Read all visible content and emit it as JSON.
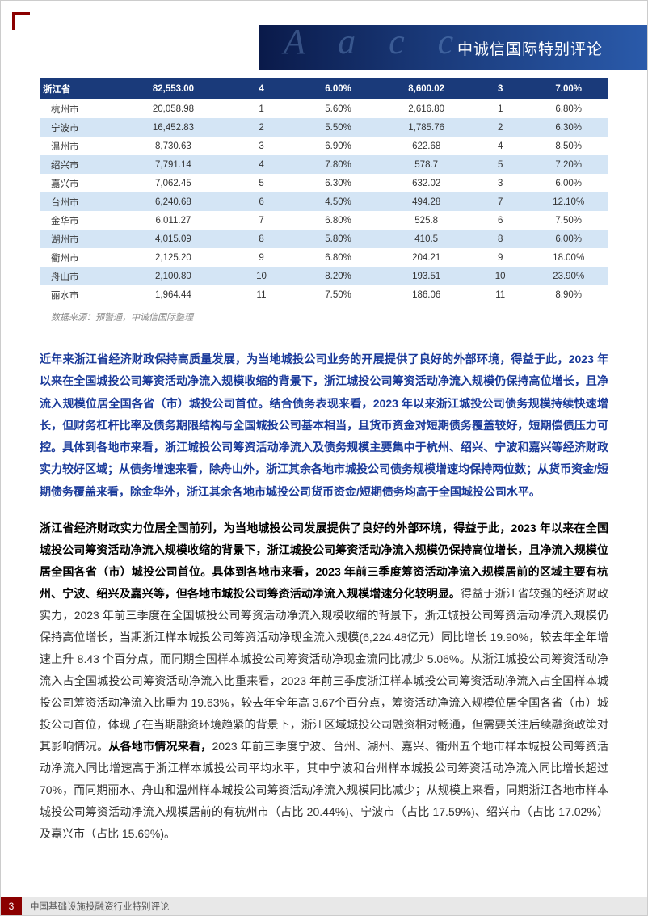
{
  "header": {
    "title": "中诚信国际特别评论"
  },
  "table": {
    "type": "table",
    "background_colors": {
      "header": "#1a3a7a",
      "even": "#d4e5f5",
      "odd": "#ffffff"
    },
    "text_colors": {
      "header": "#ffffff",
      "body": "#333333"
    },
    "rows": [
      {
        "cls": "header-row",
        "cells": [
          "浙江省",
          "82,553.00",
          "4",
          "6.00%",
          "8,600.02",
          "3",
          "7.00%"
        ]
      },
      {
        "cls": "odd",
        "cells": [
          "杭州市",
          "20,058.98",
          "1",
          "5.60%",
          "2,616.80",
          "1",
          "6.80%"
        ]
      },
      {
        "cls": "even",
        "cells": [
          "宁波市",
          "16,452.83",
          "2",
          "5.50%",
          "1,785.76",
          "2",
          "6.30%"
        ]
      },
      {
        "cls": "odd",
        "cells": [
          "温州市",
          "8,730.63",
          "3",
          "6.90%",
          "622.68",
          "4",
          "8.50%"
        ]
      },
      {
        "cls": "even",
        "cells": [
          "绍兴市",
          "7,791.14",
          "4",
          "7.80%",
          "578.7",
          "5",
          "7.20%"
        ]
      },
      {
        "cls": "odd",
        "cells": [
          "嘉兴市",
          "7,062.45",
          "5",
          "6.30%",
          "632.02",
          "3",
          "6.00%"
        ]
      },
      {
        "cls": "even",
        "cells": [
          "台州市",
          "6,240.68",
          "6",
          "4.50%",
          "494.28",
          "7",
          "12.10%"
        ]
      },
      {
        "cls": "odd",
        "cells": [
          "金华市",
          "6,011.27",
          "7",
          "6.80%",
          "525.8",
          "6",
          "7.50%"
        ]
      },
      {
        "cls": "even",
        "cells": [
          "湖州市",
          "4,015.09",
          "8",
          "5.80%",
          "410.5",
          "8",
          "6.00%"
        ]
      },
      {
        "cls": "odd",
        "cells": [
          "衢州市",
          "2,125.20",
          "9",
          "6.80%",
          "204.21",
          "9",
          "18.00%"
        ]
      },
      {
        "cls": "even",
        "cells": [
          "舟山市",
          "2,100.80",
          "10",
          "8.20%",
          "193.51",
          "10",
          "23.90%"
        ]
      },
      {
        "cls": "odd",
        "cells": [
          "丽水市",
          "1,964.44",
          "11",
          "7.50%",
          "186.06",
          "11",
          "8.90%"
        ]
      }
    ],
    "source": "数据来源：预警通，中诚信国际整理"
  },
  "summary": "近年来浙江省经济财政保持高质量发展，为当地城投公司业务的开展提供了良好的外部环境，得益于此，2023 年以来在全国城投公司筹资活动净流入规模收缩的背景下，浙江城投公司筹资活动净流入规模仍保持高位增长，且净流入规模位居全国各省（市）城投公司首位。结合债务表现来看，2023 年以来浙江城投公司债务规模持续快速增长，但财务杠杆比率及债务期限结构与全国城投公司基本相当，且货币资金对短期债务覆盖较好，短期偿债压力可控。具体到各地市来看，浙江城投公司筹资活动净流入及债务规模主要集中于杭州、绍兴、宁波和嘉兴等经济财政实力较好区域；从债务增速来看，除舟山外，浙江其余各地市城投公司债务规模增速均保持两位数；从货币资金/短期债务覆盖来看，除金华外，浙江其余各地市城投公司货币资金/短期债务均高于全国城投公司水平。",
  "body": {
    "bold1": "浙江省经济财政实力位居全国前列，为当地城投公司发展提供了良好的外部环境，得益于此，2023 年以来在全国城投公司筹资活动净流入规模收缩的背景下，浙江城投公司筹资活动净流入规模仍保持高位增长，且净流入规模位居全国各省（市）城投公司首位。具体到各地市来看，2023 年前三季度筹资活动净流入规模居前的区域主要有杭州、宁波、绍兴及嘉兴等，但各地市城投公司筹资活动净流入规模增速分化较明显。",
    "plain1": "得益于浙江省较强的经济财政实力，2023 年前三季度在全国城投公司筹资活动净流入规模收缩的背景下，浙江城投公司筹资活动净流入规模仍保持高位增长，当期浙江样本城投公司筹资活动净现金流入规模(6,224.48亿元）同比增长 19.90%，较去年全年增速上升 8.43 个百分点，而同期全国样本城投公司筹资活动净现金流同比减少 5.06%。从浙江城投公司筹资活动净流入占全国城投公司筹资活动净流入比重来看，2023 年前三季度浙江样本城投公司筹资活动净流入占全国样本城投公司筹资活动净流入比重为 19.63%，较去年全年高 3.67个百分点，筹资活动净流入规模位居全国各省（市）城投公司首位，体现了在当期融资环境趋紧的背景下，浙江区域城投公司融资相对畅通，但需要关注后续融资政策对其影响情况。",
    "bold2": "从各地市情况来看，",
    "plain2": "2023 年前三季度宁波、台州、湖州、嘉兴、衢州五个地市样本城投公司筹资活动净流入同比增速高于浙江样本城投公司平均水平，其中宁波和台州样本城投公司筹资活动净流入同比增长超过 70%，而同期丽水、舟山和温州样本城投公司筹资活动净流入规模同比减少；从规模上来看，同期浙江各地市样本城投公司筹资活动净流入规模居前的有杭州市（占比 20.44%)、宁波市（占比 17.59%)、绍兴市（占比 17.02%）及嘉兴市（占比 15.69%)。"
  },
  "footer": {
    "page": "3",
    "text": "中国基础设施投融资行业特别评论"
  },
  "colors": {
    "accent_red": "#8b0000",
    "header_blue": "#1a3a7a",
    "summary_blue": "#1a3a9a",
    "footer_gray": "#e8e8e8"
  }
}
